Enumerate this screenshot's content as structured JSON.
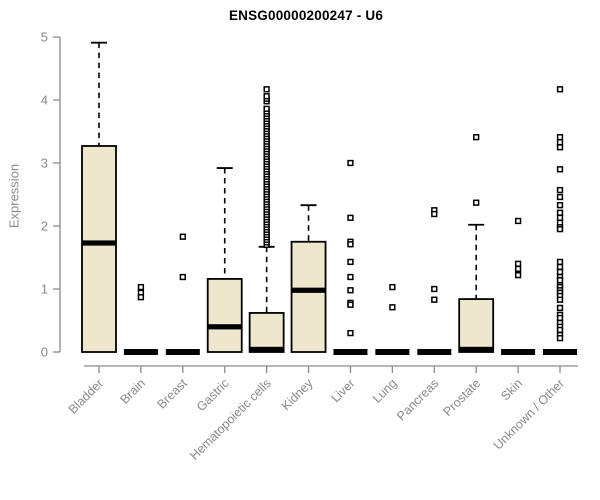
{
  "chart_data": {
    "type": "boxplot",
    "title": "ENSG00000200247 - U6",
    "ylabel": "Expression",
    "xlabel": "",
    "ylim": [
      0,
      5
    ],
    "yticks": [
      0,
      1,
      2,
      3,
      4,
      5
    ],
    "grid": false,
    "legend": "none",
    "categories": [
      "Bladder",
      "Brain",
      "Breast",
      "Gastric",
      "Hematopoietic cells",
      "Kidney",
      "Liver",
      "Lung",
      "Pancreas",
      "Prostate",
      "Skin",
      "Unknown / Other"
    ],
    "boxes": [
      {
        "category": "Bladder",
        "q1": 0,
        "median": 1.73,
        "q3": 3.27,
        "whisker_low": 0,
        "whisker_high": 4.91,
        "outliers": []
      },
      {
        "category": "Brain",
        "q1": 0,
        "median": 0,
        "q3": 0,
        "whisker_low": 0,
        "whisker_high": 0,
        "outliers": [
          1.03,
          0.94,
          0.87
        ]
      },
      {
        "category": "Breast",
        "q1": 0,
        "median": 0,
        "q3": 0,
        "whisker_low": 0,
        "whisker_high": 0,
        "outliers": [
          1.83,
          1.19
        ]
      },
      {
        "category": "Gastric",
        "q1": 0,
        "median": 0.4,
        "q3": 1.16,
        "whisker_low": 0,
        "whisker_high": 2.92,
        "outliers": []
      },
      {
        "category": "Hematopoietic cells",
        "q1": 0,
        "median": 0.03,
        "q3": 0.62,
        "whisker_low": 0,
        "whisker_high": 1.67,
        "outliers": [
          1.7,
          1.74,
          1.78,
          1.82,
          1.86,
          1.9,
          1.94,
          1.98,
          2.02,
          2.06,
          2.1,
          2.14,
          2.18,
          2.22,
          2.26,
          2.3,
          2.34,
          2.38,
          2.42,
          2.46,
          2.5,
          2.54,
          2.58,
          2.62,
          2.66,
          2.7,
          2.74,
          2.78,
          2.82,
          2.86,
          2.9,
          2.94,
          2.98,
          3.02,
          3.06,
          3.1,
          3.14,
          3.18,
          3.22,
          3.26,
          3.3,
          3.34,
          3.38,
          3.42,
          3.46,
          3.5,
          3.54,
          3.58,
          3.62,
          3.66,
          3.7,
          3.74,
          3.78,
          3.82,
          3.86,
          3.98,
          4.02,
          4.06,
          4.17
        ]
      },
      {
        "category": "Kidney",
        "q1": 0,
        "median": 0.98,
        "q3": 1.75,
        "whisker_low": 0,
        "whisker_high": 2.33,
        "outliers": []
      },
      {
        "category": "Liver",
        "q1": 0,
        "median": 0,
        "q3": 0,
        "whisker_low": 0,
        "whisker_high": 0,
        "outliers": [
          3.0,
          2.13,
          1.75,
          1.71,
          1.43,
          1.19,
          0.98,
          0.78,
          0.75,
          0.3
        ]
      },
      {
        "category": "Lung",
        "q1": 0,
        "median": 0,
        "q3": 0,
        "whisker_low": 0,
        "whisker_high": 0,
        "outliers": [
          1.03,
          0.71
        ]
      },
      {
        "category": "Pancreas",
        "q1": 0,
        "median": 0,
        "q3": 0,
        "whisker_low": 0,
        "whisker_high": 0,
        "outliers": [
          2.25,
          2.19,
          1.0,
          0.83
        ]
      },
      {
        "category": "Prostate",
        "q1": 0,
        "median": 0.02,
        "q3": 0.84,
        "whisker_low": 0,
        "whisker_high": 2.02,
        "outliers": [
          3.41,
          2.37
        ]
      },
      {
        "category": "Skin",
        "q1": 0,
        "median": 0,
        "q3": 0,
        "whisker_low": 0,
        "whisker_high": 0,
        "outliers": [
          2.08,
          1.4,
          1.32,
          1.22
        ]
      },
      {
        "category": "Unknown / Other",
        "q1": 0,
        "median": 0,
        "q3": 0,
        "whisker_low": 0,
        "whisker_high": 0,
        "outliers": [
          4.17,
          3.41,
          3.33,
          3.25,
          2.9,
          2.57,
          2.46,
          2.33,
          2.21,
          2.13,
          2.05,
          1.98,
          1.95,
          1.43,
          1.35,
          1.27,
          1.19,
          1.14,
          1.06,
          1.03,
          0.98,
          0.94,
          0.89,
          0.83,
          0.7,
          0.59,
          0.54,
          0.46,
          0.4,
          0.35,
          0.27,
          0.22
        ]
      }
    ],
    "colors": {
      "box_fill": "#ede7ce",
      "box_border": "#000000",
      "median": "#000000",
      "whisker": "#000000",
      "outlier_stroke": "#000000",
      "outlier_fill": "#ffffff",
      "axis": "#8a8a8a",
      "tick_label": "#8a8a8a",
      "title": "#000000",
      "background": "#ffffff"
    }
  }
}
